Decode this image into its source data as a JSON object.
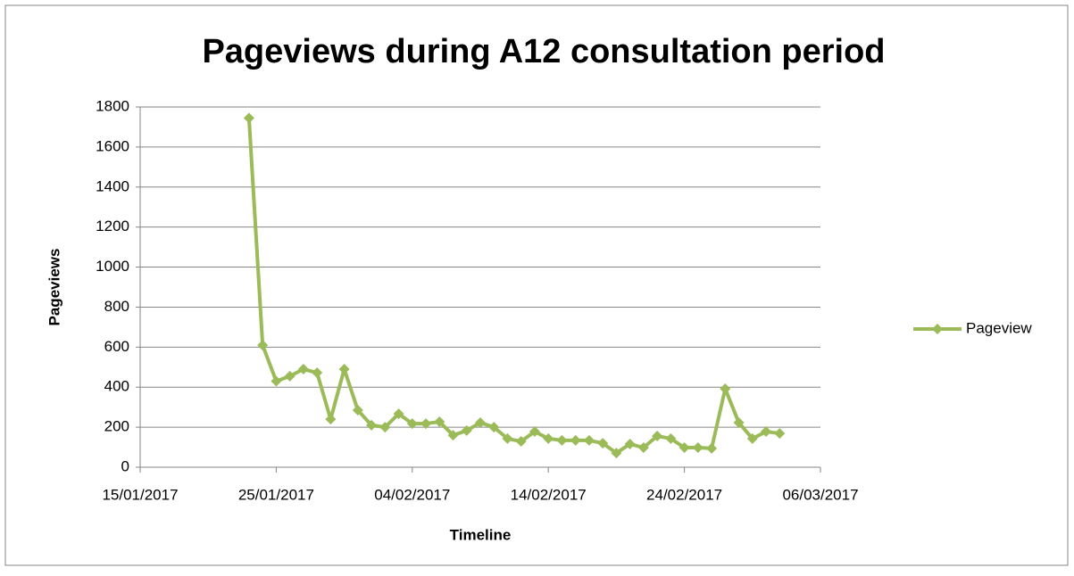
{
  "chart_data": {
    "type": "line",
    "title": "Pageviews during A12 consultation period",
    "x_label": "Timeline",
    "y_label": "Pageviews",
    "x": [
      "2017-01-23",
      "2017-01-24",
      "2017-01-25",
      "2017-01-26",
      "2017-01-27",
      "2017-01-28",
      "2017-01-29",
      "2017-01-30",
      "2017-01-31",
      "2017-02-01",
      "2017-02-02",
      "2017-02-03",
      "2017-02-04",
      "2017-02-05",
      "2017-02-06",
      "2017-02-07",
      "2017-02-08",
      "2017-02-09",
      "2017-02-10",
      "2017-02-11",
      "2017-02-12",
      "2017-02-13",
      "2017-02-14",
      "2017-02-15",
      "2017-02-16",
      "2017-02-17",
      "2017-02-18",
      "2017-02-19",
      "2017-02-20",
      "2017-02-21",
      "2017-02-22",
      "2017-02-23",
      "2017-02-24",
      "2017-02-25",
      "2017-02-26",
      "2017-02-27",
      "2017-02-28",
      "2017-03-01",
      "2017-03-02",
      "2017-03-03"
    ],
    "series": [
      {
        "name": "Pageview",
        "color": "#9bbb59",
        "values": [
          1745,
          610,
          430,
          455,
          490,
          472,
          240,
          490,
          285,
          210,
          200,
          267,
          218,
          218,
          227,
          160,
          183,
          223,
          200,
          143,
          129,
          178,
          143,
          134,
          134,
          134,
          120,
          71,
          116,
          98,
          156,
          143,
          98,
          98,
          94,
          392,
          223,
          143,
          178,
          169
        ]
      }
    ],
    "xlim": [
      "2017-01-15",
      "2017-03-06"
    ],
    "xticks": [
      {
        "value": "2017-01-15",
        "label": "15/01/2017"
      },
      {
        "value": "2017-01-25",
        "label": "25/01/2017"
      },
      {
        "value": "2017-02-04",
        "label": "04/02/2017"
      },
      {
        "value": "2017-02-14",
        "label": "14/02/2017"
      },
      {
        "value": "2017-02-24",
        "label": "24/02/2017"
      },
      {
        "value": "2017-03-06",
        "label": "06/03/2017"
      }
    ],
    "ylim": [
      0,
      1800
    ],
    "yticks": [
      0,
      200,
      400,
      600,
      800,
      1000,
      1200,
      1400,
      1600,
      1800
    ],
    "grid": true,
    "legend": "right"
  }
}
